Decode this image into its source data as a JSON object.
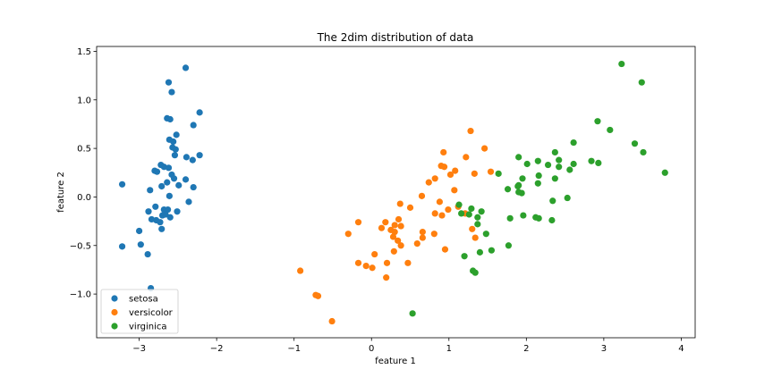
{
  "chart_data": {
    "type": "scatter",
    "title": "The 2dim distribution of data",
    "xlabel": "feature 1",
    "ylabel": "feature 2",
    "xlim": [
      -3.55,
      4.18
    ],
    "ylim": [
      -1.45,
      1.55
    ],
    "xticks": [
      -3,
      -2,
      -1,
      0,
      1,
      2,
      3,
      4
    ],
    "xtick_labels": [
      "−3",
      "−2",
      "−1",
      "0",
      "1",
      "2",
      "3",
      "4"
    ],
    "yticks": [
      -1.0,
      -0.5,
      0.0,
      0.5,
      1.0,
      1.5
    ],
    "ytick_labels": [
      "−1.0",
      "−0.5",
      "0.0",
      "0.5",
      "1.0",
      "1.5"
    ],
    "grid": false,
    "legend_position": "lower-left",
    "series": [
      {
        "name": "setosa",
        "color": "#1f77b4",
        "points": [
          [
            -2.4,
            1.33
          ],
          [
            -2.62,
            1.18
          ],
          [
            -2.58,
            1.08
          ],
          [
            -2.64,
            0.81
          ],
          [
            -2.6,
            0.8
          ],
          [
            -2.22,
            0.87
          ],
          [
            -2.3,
            0.74
          ],
          [
            -2.52,
            0.64
          ],
          [
            -2.61,
            0.59
          ],
          [
            -2.56,
            0.57
          ],
          [
            -2.57,
            0.51
          ],
          [
            -2.53,
            0.49
          ],
          [
            -2.54,
            0.43
          ],
          [
            -2.22,
            0.43
          ],
          [
            -2.39,
            0.41
          ],
          [
            -2.31,
            0.38
          ],
          [
            -2.72,
            0.33
          ],
          [
            -2.68,
            0.31
          ],
          [
            -2.62,
            0.3
          ],
          [
            -2.8,
            0.27
          ],
          [
            -2.77,
            0.26
          ],
          [
            -2.58,
            0.23
          ],
          [
            -2.55,
            0.19
          ],
          [
            -2.4,
            0.18
          ],
          [
            -2.64,
            0.15
          ],
          [
            -2.49,
            0.12
          ],
          [
            -2.71,
            0.11
          ],
          [
            -2.3,
            0.1
          ],
          [
            -2.86,
            0.07
          ],
          [
            -2.61,
            0.01
          ],
          [
            -2.36,
            -0.05
          ],
          [
            -2.79,
            -0.1
          ],
          [
            -2.68,
            -0.13
          ],
          [
            -2.63,
            -0.13
          ],
          [
            -2.88,
            -0.15
          ],
          [
            -2.51,
            -0.15
          ],
          [
            -2.66,
            -0.18
          ],
          [
            -2.7,
            -0.19
          ],
          [
            -2.6,
            -0.21
          ],
          [
            -2.84,
            -0.23
          ],
          [
            -2.78,
            -0.24
          ],
          [
            -2.73,
            -0.26
          ],
          [
            -2.71,
            -0.33
          ],
          [
            -3.22,
            0.13
          ],
          [
            -3.0,
            -0.35
          ],
          [
            -2.98,
            -0.49
          ],
          [
            -3.22,
            -0.51
          ],
          [
            -2.89,
            -0.59
          ],
          [
            -2.85,
            -0.94
          ]
        ]
      },
      {
        "name": "versicolor",
        "color": "#ff7f0e",
        "points": [
          [
            1.28,
            0.68
          ],
          [
            0.93,
            0.46
          ],
          [
            1.46,
            0.5
          ],
          [
            0.9,
            0.32
          ],
          [
            0.94,
            0.31
          ],
          [
            1.02,
            0.23
          ],
          [
            1.08,
            0.27
          ],
          [
            1.22,
            0.41
          ],
          [
            1.54,
            0.26
          ],
          [
            0.82,
            0.19
          ],
          [
            1.33,
            0.24
          ],
          [
            0.74,
            0.15
          ],
          [
            0.65,
            0.01
          ],
          [
            1.07,
            0.07
          ],
          [
            0.88,
            -0.05
          ],
          [
            0.37,
            -0.07
          ],
          [
            0.5,
            -0.11
          ],
          [
            0.99,
            -0.13
          ],
          [
            1.21,
            -0.17
          ],
          [
            0.82,
            -0.17
          ],
          [
            0.91,
            -0.19
          ],
          [
            1.12,
            -0.1
          ],
          [
            0.35,
            -0.23
          ],
          [
            0.18,
            -0.26
          ],
          [
            0.38,
            -0.3
          ],
          [
            0.3,
            -0.29
          ],
          [
            -0.17,
            -0.26
          ],
          [
            0.13,
            -0.32
          ],
          [
            0.25,
            -0.34
          ],
          [
            0.3,
            -0.36
          ],
          [
            0.66,
            -0.36
          ],
          [
            0.59,
            -0.48
          ],
          [
            0.66,
            -0.42
          ],
          [
            0.81,
            -0.38
          ],
          [
            0.28,
            -0.41
          ],
          [
            -0.3,
            -0.38
          ],
          [
            0.34,
            -0.45
          ],
          [
            0.38,
            -0.5
          ],
          [
            0.29,
            -0.56
          ],
          [
            0.95,
            -0.54
          ],
          [
            1.34,
            -0.42
          ],
          [
            1.3,
            -0.33
          ],
          [
            0.04,
            -0.59
          ],
          [
            -0.17,
            -0.68
          ],
          [
            -0.07,
            -0.71
          ],
          [
            0.01,
            -0.73
          ],
          [
            0.2,
            -0.68
          ],
          [
            0.47,
            -0.68
          ],
          [
            0.19,
            -0.83
          ],
          [
            -0.92,
            -0.76
          ],
          [
            -0.72,
            -1.01
          ],
          [
            -0.69,
            -1.02
          ],
          [
            -0.51,
            -1.28
          ]
        ]
      },
      {
        "name": "virginica",
        "color": "#2ca02c",
        "points": [
          [
            3.23,
            1.37
          ],
          [
            3.49,
            1.18
          ],
          [
            2.92,
            0.78
          ],
          [
            3.08,
            0.69
          ],
          [
            2.61,
            0.56
          ],
          [
            3.4,
            0.55
          ],
          [
            3.51,
            0.46
          ],
          [
            2.37,
            0.46
          ],
          [
            2.42,
            0.38
          ],
          [
            2.15,
            0.37
          ],
          [
            2.84,
            0.37
          ],
          [
            2.93,
            0.35
          ],
          [
            2.61,
            0.34
          ],
          [
            2.28,
            0.33
          ],
          [
            2.42,
            0.31
          ],
          [
            2.56,
            0.28
          ],
          [
            1.9,
            0.41
          ],
          [
            2.01,
            0.34
          ],
          [
            1.64,
            0.24
          ],
          [
            3.79,
            0.25
          ],
          [
            2.16,
            0.22
          ],
          [
            2.37,
            0.19
          ],
          [
            1.95,
            0.19
          ],
          [
            2.15,
            0.14
          ],
          [
            1.9,
            0.12
          ],
          [
            1.89,
            0.11
          ],
          [
            1.76,
            0.08
          ],
          [
            1.9,
            0.05
          ],
          [
            1.94,
            0.04
          ],
          [
            2.53,
            -0.01
          ],
          [
            2.34,
            -0.04
          ],
          [
            1.13,
            -0.08
          ],
          [
            1.29,
            -0.12
          ],
          [
            1.42,
            -0.15
          ],
          [
            1.16,
            -0.17
          ],
          [
            1.26,
            -0.18
          ],
          [
            1.37,
            -0.21
          ],
          [
            1.96,
            -0.19
          ],
          [
            1.79,
            -0.22
          ],
          [
            2.12,
            -0.21
          ],
          [
            2.16,
            -0.22
          ],
          [
            2.33,
            -0.24
          ],
          [
            1.37,
            -0.28
          ],
          [
            1.48,
            -0.38
          ],
          [
            1.77,
            -0.5
          ],
          [
            1.55,
            -0.55
          ],
          [
            1.4,
            -0.57
          ],
          [
            1.2,
            -0.61
          ],
          [
            1.31,
            -0.76
          ],
          [
            1.34,
            -0.78
          ],
          [
            0.53,
            -1.2
          ]
        ]
      }
    ]
  }
}
